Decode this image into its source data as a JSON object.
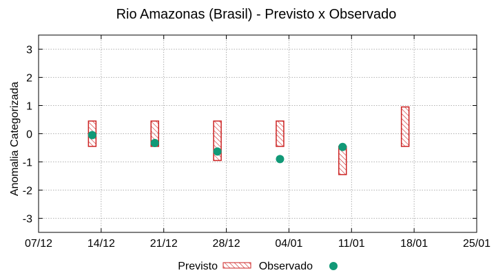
{
  "chart_data": {
    "type": "range-bar-scatter",
    "title": "Rio Amazonas (Brasil) - Previsto x Observado",
    "xlabel": "",
    "ylabel": "Anomalia Categorizada",
    "ylim": [
      -3.5,
      3.5
    ],
    "yticks": [
      -3,
      -2,
      -1,
      0,
      1,
      2,
      3
    ],
    "xlim_days": [
      0,
      49
    ],
    "xticks": [
      {
        "day": 0,
        "label": "07/12"
      },
      {
        "day": 7,
        "label": "14/12"
      },
      {
        "day": 14,
        "label": "21/12"
      },
      {
        "day": 21,
        "label": "28/12"
      },
      {
        "day": 28,
        "label": "04/01"
      },
      {
        "day": 35,
        "label": "11/01"
      },
      {
        "day": 42,
        "label": "18/01"
      },
      {
        "day": 49,
        "label": "25/01"
      }
    ],
    "grid": true,
    "legend_position": "bottom-center",
    "series": [
      {
        "name": "Previsto",
        "kind": "range",
        "color": "#cc2222",
        "points": [
          {
            "day": 6,
            "low": -0.45,
            "high": 0.45
          },
          {
            "day": 13,
            "low": -0.45,
            "high": 0.45
          },
          {
            "day": 20,
            "low": -0.95,
            "high": 0.45
          },
          {
            "day": 27,
            "low": -0.45,
            "high": 0.45
          },
          {
            "day": 34,
            "low": -1.45,
            "high": -0.45
          },
          {
            "day": 41,
            "low": -0.45,
            "high": 0.95
          }
        ]
      },
      {
        "name": "Observado",
        "kind": "point",
        "color": "#119977",
        "points": [
          {
            "day": 6,
            "value": -0.05
          },
          {
            "day": 13,
            "value": -0.33
          },
          {
            "day": 20,
            "value": -0.63
          },
          {
            "day": 27,
            "value": -0.9
          },
          {
            "day": 34,
            "value": -0.47
          }
        ]
      }
    ]
  }
}
